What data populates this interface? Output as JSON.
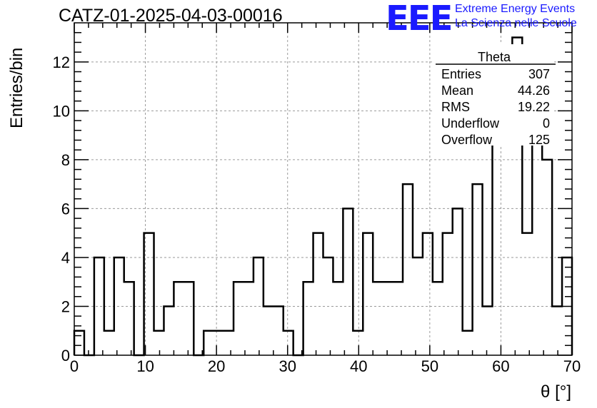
{
  "header": {
    "run_title": "CATZ-01-2025-04-03-00016",
    "logo_text": "EEE",
    "logo_line1": "Extreme Energy Events",
    "logo_line2": "La Scienza nelle Scuole",
    "logo_color": "#1a1aff"
  },
  "stats_box": {
    "title": "Theta",
    "rows": [
      {
        "label": "Entries",
        "value": "307"
      },
      {
        "label": "Mean",
        "value": "44.26"
      },
      {
        "label": "RMS",
        "value": "19.22"
      },
      {
        "label": "Underflow",
        "value": "0"
      },
      {
        "label": "Overflow",
        "value": "125"
      }
    ]
  },
  "chart_data": {
    "type": "bar",
    "style": "step-histogram",
    "xlabel": "θ [°]",
    "ylabel": "Entries/bin",
    "xlim": [
      0,
      70
    ],
    "ylim": [
      0,
      13.6
    ],
    "bin_width": 1.4,
    "x_ticks": [
      0,
      10,
      20,
      30,
      40,
      50,
      60,
      70
    ],
    "y_ticks": [
      0,
      2,
      4,
      6,
      8,
      10,
      12
    ],
    "grid": true,
    "line_color": "#000000",
    "bin_values": [
      1,
      0,
      4,
      1,
      4,
      3,
      0,
      5,
      1,
      2,
      3,
      3,
      0,
      1,
      1,
      1,
      3,
      3,
      4,
      2,
      2,
      1,
      0,
      3,
      5,
      4,
      3,
      6,
      1,
      5,
      3,
      3,
      3,
      7,
      4,
      5,
      3,
      5,
      6,
      1,
      7,
      2,
      10,
      9,
      13,
      5,
      10,
      8,
      2,
      4
    ]
  }
}
